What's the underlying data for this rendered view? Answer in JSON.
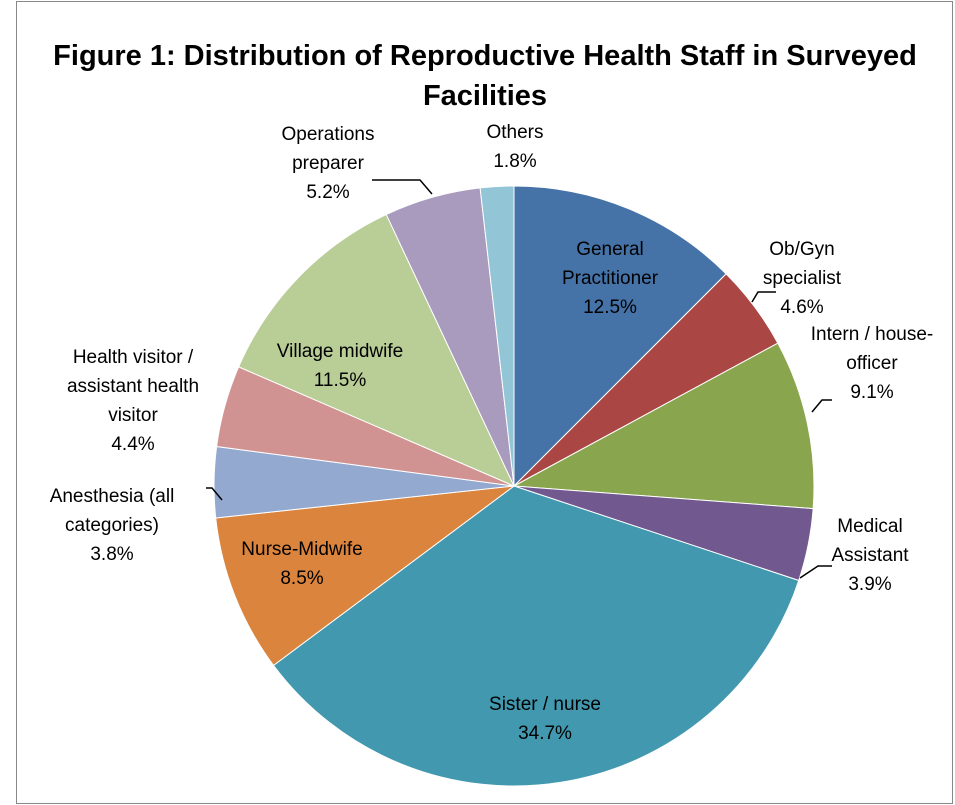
{
  "chart_data": {
    "type": "pie",
    "title": "Figure 1: Distribution of Reproductive Health Staff in Surveyed Facilities",
    "categories": [
      "General Practitioner",
      "Ob/Gyn specialist",
      "Intern / house-officer",
      "Medical Assistant",
      "Sister / nurse",
      "Nurse-Midwife",
      "Anesthesia (all categories)",
      "Health visitor / assistant health visitor",
      "Village midwife",
      "Operations preparer",
      "Others"
    ],
    "values": [
      12.5,
      4.6,
      9.1,
      3.9,
      34.7,
      8.5,
      3.8,
      4.4,
      11.5,
      5.2,
      1.8
    ],
    "value_labels": [
      "12.5%",
      "4.6%",
      "9.1%",
      "3.9%",
      "34.7%",
      "8.5%",
      "3.8%",
      "4.4%",
      "11.5%",
      "5.2%",
      "1.8%"
    ],
    "colors": [
      "#4572a7",
      "#aa4643",
      "#89a54e",
      "#71588f",
      "#4198af",
      "#db843d",
      "#93a9cf",
      "#d19392",
      "#b9cd96",
      "#a99bbd",
      "#92c5d5"
    ]
  }
}
